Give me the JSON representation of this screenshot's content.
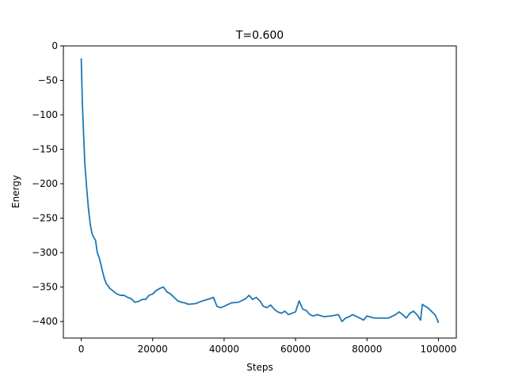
{
  "chart_data": {
    "type": "line",
    "title": "T=0.600",
    "xlabel": "Steps",
    "ylabel": "Energy",
    "xlim": [
      -5000,
      105000
    ],
    "ylim": [
      -424,
      0
    ],
    "xticks": [
      0,
      20000,
      40000,
      60000,
      80000,
      100000
    ],
    "yticks": [
      0,
      -50,
      -100,
      -150,
      -200,
      -250,
      -300,
      -350,
      -400
    ],
    "grid": false,
    "line_color": "#1f77b4",
    "series": [
      {
        "x": [
          0,
          300,
          600,
          1000,
          1500,
          2000,
          2500,
          3000,
          3500,
          4000,
          4500,
          5000,
          5500,
          6000,
          6500,
          7000,
          7500,
          8000,
          9000,
          10000,
          11000,
          12000,
          13000,
          14000,
          15000,
          16000,
          17000,
          18000,
          19000,
          20000,
          21000,
          22000,
          23000,
          24000,
          25000,
          26000,
          27000,
          28000,
          29000,
          30000,
          32000,
          34000,
          36000,
          37000,
          38000,
          39000,
          40000,
          42000,
          44000,
          46000,
          47000,
          48000,
          49000,
          50000,
          51000,
          52000,
          53000,
          54000,
          55000,
          56000,
          57000,
          58000,
          60000,
          61000,
          62000,
          63000,
          64000,
          65000,
          66000,
          68000,
          70000,
          72000,
          73000,
          74000,
          75000,
          76000,
          78000,
          79000,
          80000,
          82000,
          84000,
          86000,
          88000,
          89000,
          90000,
          91000,
          92000,
          93000,
          94000,
          95000,
          95500,
          96000,
          97000,
          98000,
          99000,
          99500,
          100000
        ],
        "y": [
          -18,
          -80,
          -120,
          -170,
          -205,
          -235,
          -258,
          -272,
          -278,
          -282,
          -300,
          -307,
          -317,
          -328,
          -338,
          -345,
          -348,
          -352,
          -356,
          -360,
          -362,
          -362,
          -365,
          -367,
          -372,
          -371,
          -368,
          -368,
          -362,
          -360,
          -355,
          -352,
          -350,
          -357,
          -360,
          -365,
          -370,
          -372,
          -373,
          -375,
          -374,
          -370,
          -367,
          -365,
          -378,
          -380,
          -378,
          -373,
          -372,
          -367,
          -362,
          -368,
          -365,
          -370,
          -378,
          -380,
          -376,
          -382,
          -386,
          -388,
          -385,
          -390,
          -386,
          -370,
          -382,
          -384,
          -390,
          -392,
          -390,
          -393,
          -392,
          -390,
          -400,
          -395,
          -393,
          -390,
          -395,
          -398,
          -392,
          -395,
          -395,
          -395,
          -390,
          -386,
          -390,
          -395,
          -388,
          -385,
          -390,
          -398,
          -375,
          -377,
          -380,
          -385,
          -390,
          -395,
          -402
        ]
      }
    ]
  }
}
